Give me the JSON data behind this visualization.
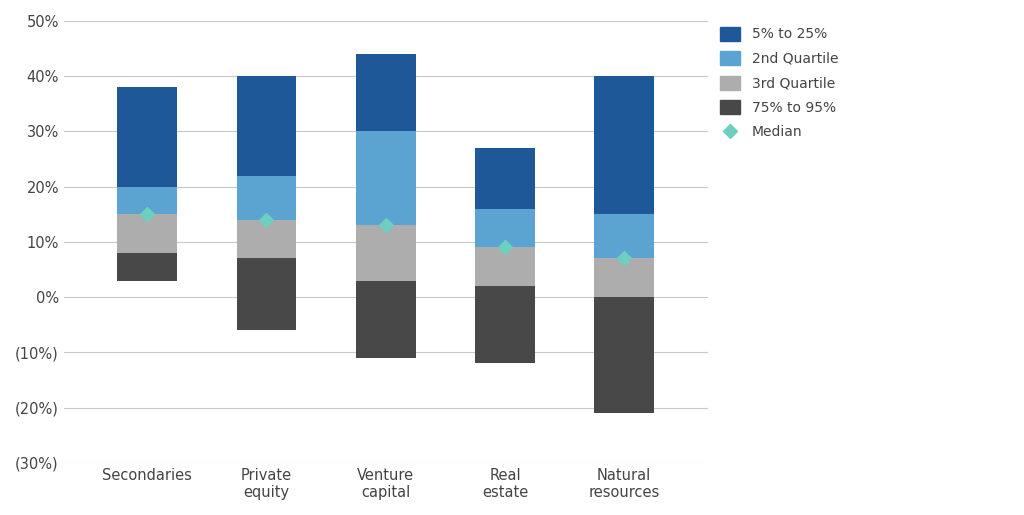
{
  "categories": [
    "Secondaries",
    "Private\nequity",
    "Venture\ncapital",
    "Real\nestate",
    "Natural\nresources"
  ],
  "boundaries": {
    "p95": [
      3,
      -6,
      -11,
      -12,
      -21
    ],
    "p75": [
      8,
      7,
      3,
      2,
      0
    ],
    "p50": [
      15,
      14,
      13,
      9,
      7
    ],
    "p25": [
      20,
      22,
      30,
      16,
      15
    ],
    "p5": [
      38,
      40,
      44,
      27,
      40
    ]
  },
  "medians": [
    15,
    14,
    13,
    9,
    7
  ],
  "segment_colors": {
    "p75_95": "#484848",
    "q3": "#ADADAD",
    "q2": "#5BA3D0",
    "p5_25": "#1F5899"
  },
  "ylim": [
    -30,
    50
  ],
  "yticks": [
    -30,
    -20,
    -10,
    0,
    10,
    20,
    30,
    40,
    50
  ],
  "ytick_labels": [
    "(30%)",
    "(20%)",
    "(10%)",
    "0%",
    "10%",
    "20%",
    "30%",
    "40%",
    "50%"
  ],
  "bar_width": 0.5,
  "median_color": "#6DCFBE",
  "median_marker": "D",
  "median_markersize": 7,
  "background_color": "#ffffff",
  "grid_color": "#C8C8C8",
  "legend_items": [
    {
      "label": "5% to 25%",
      "color": "#1F5899",
      "type": "patch"
    },
    {
      "label": "2nd Quartile",
      "color": "#5BA3D0",
      "type": "patch"
    },
    {
      "label": "3rd Quartile",
      "color": "#ADADAD",
      "type": "patch"
    },
    {
      "label": "75% to 95%",
      "color": "#484848",
      "type": "patch"
    },
    {
      "label": "Median",
      "color": "#6DCFBE",
      "type": "marker",
      "marker": "D"
    }
  ]
}
